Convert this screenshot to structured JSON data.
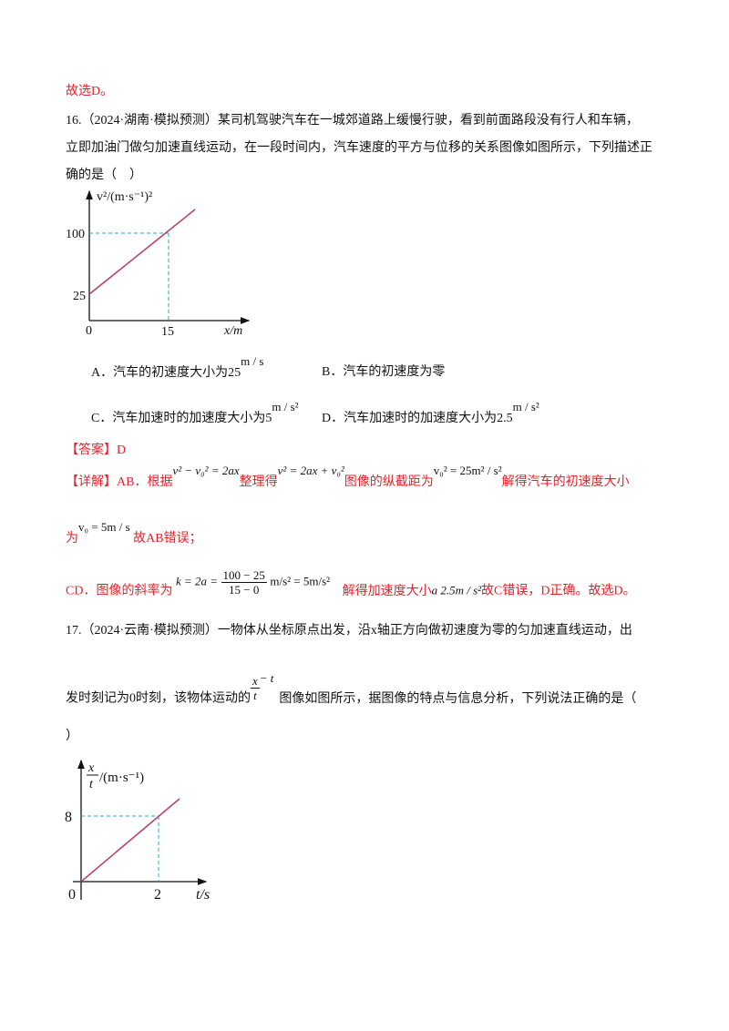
{
  "prev_answer": "故选D。",
  "q16": {
    "number": "16.",
    "source": "（2024·湖南·模拟预测）",
    "line1": "某司机驾驶汽车在一城郊道路上缓慢行驶，看到前面路段没有行人和车辆，",
    "line2": "立即加油门做匀加速直线运动，在一段时间内，汽车速度的平方与位移的关系图像如图所示，下列描述正",
    "line3": "确的是（　）",
    "graph": {
      "ylabel": "v²/(m·s⁻¹)²",
      "xlabel": "x/m",
      "origin": "0",
      "y_ticks": [
        "100",
        "25"
      ],
      "x_ticks": [
        "15"
      ],
      "line_color": "#b5446e",
      "guide_color": "#1fa9d6"
    },
    "options": {
      "A": {
        "text": "A．汽车的初速度大小为25",
        "unit": "m / s"
      },
      "B": {
        "text": "B．汽车的初速度为零"
      },
      "C": {
        "text": "C．汽车加速时的加速度大小为5",
        "unit": "m / s²"
      },
      "D": {
        "text": "D．汽车加速时的加速度大小为2.5",
        "unit": "m / s²"
      }
    },
    "answer": "【答案】D",
    "explain": {
      "p1_label": "【详解】AB．根据",
      "eq1": "v² − v₀² = 2ax",
      "p1_mid": "整理得",
      "eq2": "v² = 2ax + v₀²",
      "p1_mid2": "图像的纵截距为",
      "eq3": "v₀² = 25m² / s²",
      "p1_end": "解得汽车的初速度大小",
      "p2_start": "为",
      "eq4": "v₀ = 5m / s",
      "p2_end": "故AB错误；",
      "p3_start": "CD．图像的斜率为",
      "eq5_left": "k = 2a =",
      "eq5_num": "100 − 25",
      "eq5_den": "15 − 0",
      "eq5_right": "m/s² = 5m/s²",
      "p3_mid": "解得加速度大小",
      "eq6": "a   2.5m / s²",
      "p3_end": "故C错误，D正确。故选D。"
    }
  },
  "q17": {
    "number": "17.",
    "source": "（2024·云南·模拟预测）",
    "line1": "一物体从坐标原点出发，沿x轴正方向做初速度为零的匀加速直线运动，出",
    "line2_start": "发时刻记为0时刻，该物体运动的",
    "frac_num": "x",
    "frac_den": "t",
    "frac_suffix": "− t",
    "line2_end": "图像如图所示，据图像的特点与信息分析，下列说法正确的是（",
    "line3": "）",
    "graph": {
      "ylabel_num": "x",
      "ylabel_den": "t",
      "ylabel_unit": "/(m·s⁻¹)",
      "xlabel": "t/s",
      "origin": "0",
      "y_ticks": [
        "8"
      ],
      "x_ticks": [
        "2"
      ],
      "line_color": "#b5446e",
      "guide_color": "#1fa9d6"
    }
  }
}
